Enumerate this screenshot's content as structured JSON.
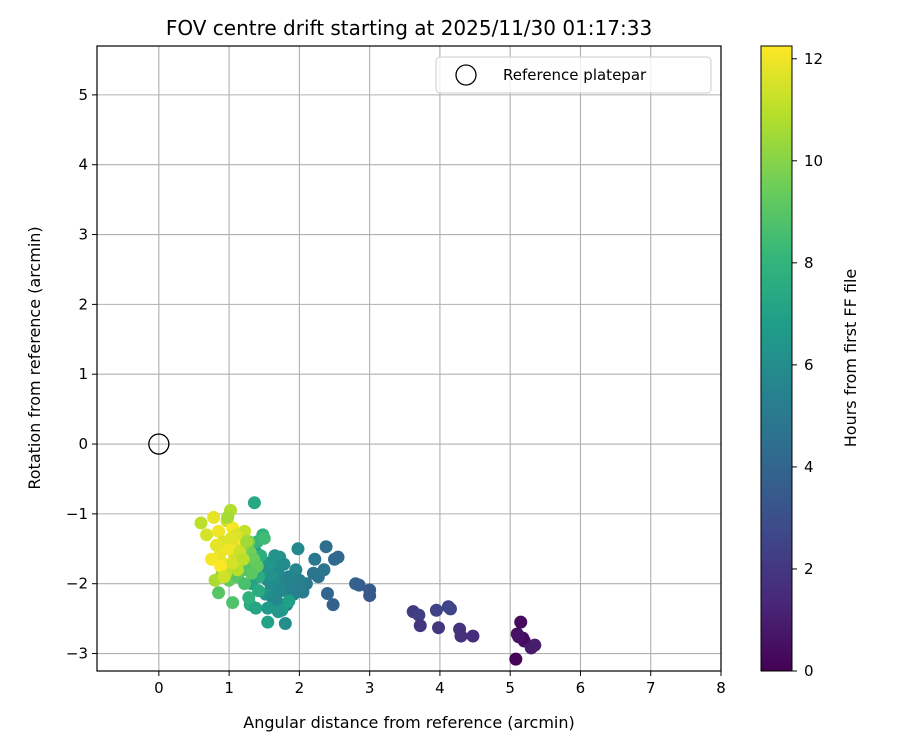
{
  "chart_data": {
    "type": "scatter",
    "title": "FOV centre drift starting at 2025/11/30 01:17:33",
    "xlabel": "Angular distance from reference (arcmin)",
    "ylabel": "Rotation from reference (arcmin)",
    "xlim": [
      -0.88,
      8.0
    ],
    "ylim": [
      -3.25,
      5.7
    ],
    "xticks": [
      0,
      1,
      2,
      3,
      4,
      5,
      6,
      7,
      8
    ],
    "yticks": [
      -3,
      -2,
      -1,
      0,
      1,
      2,
      3,
      4,
      5
    ],
    "grid": true,
    "legend": {
      "placement": "top-right",
      "entries": [
        "Reference platepar"
      ]
    },
    "reference_point": {
      "x": 0,
      "y": 0,
      "label": "Reference platepar"
    },
    "colorbar": {
      "label": "Hours from first FF file",
      "range": [
        0,
        12.25
      ],
      "ticks": [
        0,
        2,
        4,
        6,
        8,
        10,
        12
      ],
      "colormap": "viridis",
      "stops": [
        "#440154",
        "#482878",
        "#3e4989",
        "#31688e",
        "#26828e",
        "#1f9e89",
        "#35b779",
        "#6ece58",
        "#b5de2b",
        "#fde725"
      ]
    },
    "series": [
      {
        "x": [
          5.08,
          5.15,
          5.1,
          5.2,
          5.3,
          5.35,
          5.18,
          5.12
        ],
        "y": [
          -3.08,
          -2.55,
          -2.72,
          -2.82,
          -2.92,
          -2.88,
          -2.78,
          -2.76
        ],
        "c": [
          0.1,
          0.3,
          0.5,
          0.7,
          0.9,
          1.0,
          0.4,
          0.6
        ]
      },
      {
        "x": [
          3.62,
          3.7,
          3.72,
          3.95,
          3.98,
          4.12,
          4.15,
          4.28,
          4.3,
          4.47
        ],
        "y": [
          -2.4,
          -2.45,
          -2.6,
          -2.38,
          -2.63,
          -2.33,
          -2.36,
          -2.65,
          -2.75,
          -2.75
        ],
        "c": [
          2.1,
          2.3,
          1.9,
          2.5,
          2.0,
          2.4,
          2.6,
          1.8,
          1.7,
          1.6
        ]
      },
      {
        "x": [
          2.38,
          2.5,
          2.8,
          2.85,
          3.0,
          3.0,
          2.55,
          2.4,
          2.48,
          2.22,
          2.27,
          2.35,
          2.1,
          2.2
        ],
        "y": [
          -1.47,
          -1.65,
          -2.0,
          -2.02,
          -2.09,
          -2.17,
          -1.62,
          -2.14,
          -2.3,
          -1.65,
          -1.9,
          -1.8,
          -2.0,
          -1.85
        ],
        "c": [
          4.4,
          4.2,
          3.9,
          3.7,
          3.5,
          3.4,
          4.1,
          4.0,
          3.8,
          4.9,
          4.6,
          4.8,
          5.0,
          4.7
        ]
      },
      {
        "x": [
          1.38,
          1.45,
          1.5,
          1.55,
          1.6,
          1.65,
          1.7,
          1.75,
          1.8,
          1.85,
          1.9,
          1.95,
          2.0,
          2.05,
          1.52,
          1.58,
          1.62,
          1.68,
          1.72,
          1.78,
          1.82,
          1.88,
          1.92,
          1.98,
          2.02,
          1.55,
          1.65,
          1.75,
          1.85,
          1.7,
          1.8,
          1.63,
          1.73,
          1.6
        ],
        "y": [
          -1.55,
          -1.65,
          -1.8,
          -1.95,
          -2.05,
          -1.75,
          -1.85,
          -2.0,
          -2.1,
          -1.9,
          -2.05,
          -1.8,
          -1.95,
          -2.12,
          -2.15,
          -1.7,
          -2.2,
          -2.25,
          -1.62,
          -1.72,
          -2.3,
          -2.0,
          -2.15,
          -1.5,
          -2.08,
          -2.35,
          -1.6,
          -2.38,
          -2.25,
          -2.4,
          -2.57,
          -1.98,
          -2.1,
          -1.88
        ],
        "c": [
          6.8,
          6.5,
          6.2,
          6.0,
          5.8,
          6.1,
          5.9,
          5.6,
          5.4,
          5.5,
          5.2,
          5.7,
          5.3,
          5.1,
          6.3,
          6.4,
          6.0,
          5.8,
          6.2,
          5.9,
          5.7,
          5.5,
          5.4,
          5.8,
          5.2,
          6.6,
          6.3,
          6.7,
          6.9,
          6.5,
          6.1,
          6.0,
          5.8,
          6.2
        ]
      },
      {
        "x": [
          1.36,
          1.48,
          1.3,
          1.38,
          1.42,
          1.28,
          1.35,
          1.45,
          1.55,
          1.4,
          1.32,
          1.25,
          1.5,
          1.38,
          1.2,
          1.42
        ],
        "y": [
          -0.84,
          -1.3,
          -2.3,
          -2.35,
          -1.9,
          -2.2,
          -1.7,
          -1.6,
          -2.55,
          -1.4,
          -2.0,
          -1.5,
          -1.35,
          -1.8,
          -1.75,
          -2.1
        ],
        "c": [
          7.3,
          7.8,
          7.5,
          7.2,
          7.6,
          7.9,
          7.4,
          7.7,
          7.0,
          8.0,
          7.1,
          8.2,
          8.4,
          7.3,
          8.6,
          7.5
        ]
      },
      {
        "x": [
          0.85,
          1.05,
          1.0,
          1.1,
          1.15,
          1.2,
          1.25,
          1.3,
          1.35,
          1.05,
          0.95,
          1.12,
          1.18,
          1.28,
          1.22,
          0.9,
          1.4,
          1.32
        ],
        "y": [
          -2.13,
          -2.27,
          -1.95,
          -1.85,
          -1.6,
          -1.7,
          -1.8,
          -1.55,
          -1.65,
          -1.45,
          -1.75,
          -1.9,
          -1.5,
          -1.4,
          -2.0,
          -1.85,
          -1.75,
          -1.85
        ],
        "c": [
          9.0,
          8.8,
          9.3,
          9.1,
          9.5,
          9.2,
          8.9,
          9.6,
          9.4,
          9.8,
          9.7,
          9.0,
          9.9,
          9.5,
          8.7,
          10.0,
          9.3,
          9.1
        ]
      },
      {
        "x": [
          0.6,
          0.68,
          0.78,
          0.85,
          0.88,
          0.92,
          0.97,
          1.02,
          1.05,
          1.08,
          1.12,
          1.15,
          1.18,
          1.22,
          0.8,
          0.9,
          0.95,
          1.0,
          1.1,
          0.75,
          0.82,
          0.98,
          1.05,
          1.15,
          1.25,
          0.88,
          1.2,
          0.93,
          1.03
        ],
        "y": [
          -1.13,
          -1.3,
          -1.05,
          -1.25,
          -1.55,
          -1.4,
          -1.1,
          -0.95,
          -1.2,
          -1.6,
          -1.8,
          -1.45,
          -1.35,
          -1.25,
          -1.95,
          -1.7,
          -1.85,
          -1.5,
          -1.3,
          -1.65,
          -1.45,
          -1.05,
          -1.7,
          -1.55,
          -1.4,
          -1.75,
          -1.65,
          -1.9,
          -1.35
        ],
        "c": [
          11.0,
          11.5,
          11.8,
          12.0,
          11.9,
          11.6,
          11.3,
          10.8,
          12.1,
          11.4,
          10.9,
          11.7,
          12.2,
          11.2,
          10.7,
          11.9,
          11.1,
          12.0,
          11.6,
          12.1,
          11.8,
          10.6,
          11.5,
          11.3,
          10.5,
          12.2,
          11.0,
          11.4,
          11.7
        ]
      }
    ]
  }
}
